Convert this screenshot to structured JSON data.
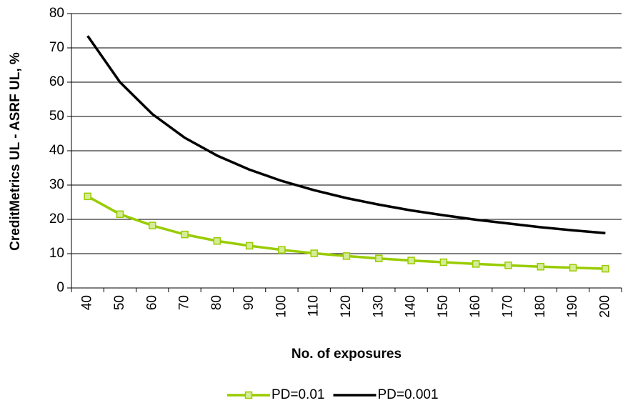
{
  "chart_data": {
    "type": "line",
    "x_label": "No. of exposures",
    "y_label": "CreditMetrics UL - ASRF UL, %",
    "categories": [
      "40",
      "50",
      "60",
      "70",
      "80",
      "90",
      "100",
      "110",
      "120",
      "130",
      "140",
      "150",
      "160",
      "170",
      "180",
      "190",
      "200"
    ],
    "series": [
      {
        "name": "PD=0.01",
        "color": "#99cc00",
        "marker": "square",
        "values": [
          26.7,
          21.5,
          18.2,
          15.6,
          13.7,
          12.3,
          11.1,
          10.1,
          9.3,
          8.6,
          8.0,
          7.5,
          7.0,
          6.6,
          6.2,
          5.9,
          5.6
        ]
      },
      {
        "name": "PD=0.001",
        "color": "#000000",
        "values": [
          73.5,
          60.0,
          50.7,
          43.8,
          38.6,
          34.5,
          31.2,
          28.5,
          26.2,
          24.3,
          22.6,
          21.2,
          19.9,
          18.8,
          17.7,
          16.8,
          16.0
        ]
      }
    ],
    "ylim": [
      0,
      80
    ],
    "yticks": [
      0,
      10,
      20,
      30,
      40,
      50,
      60,
      70,
      80
    ],
    "grid": true,
    "legend": "bottom"
  }
}
